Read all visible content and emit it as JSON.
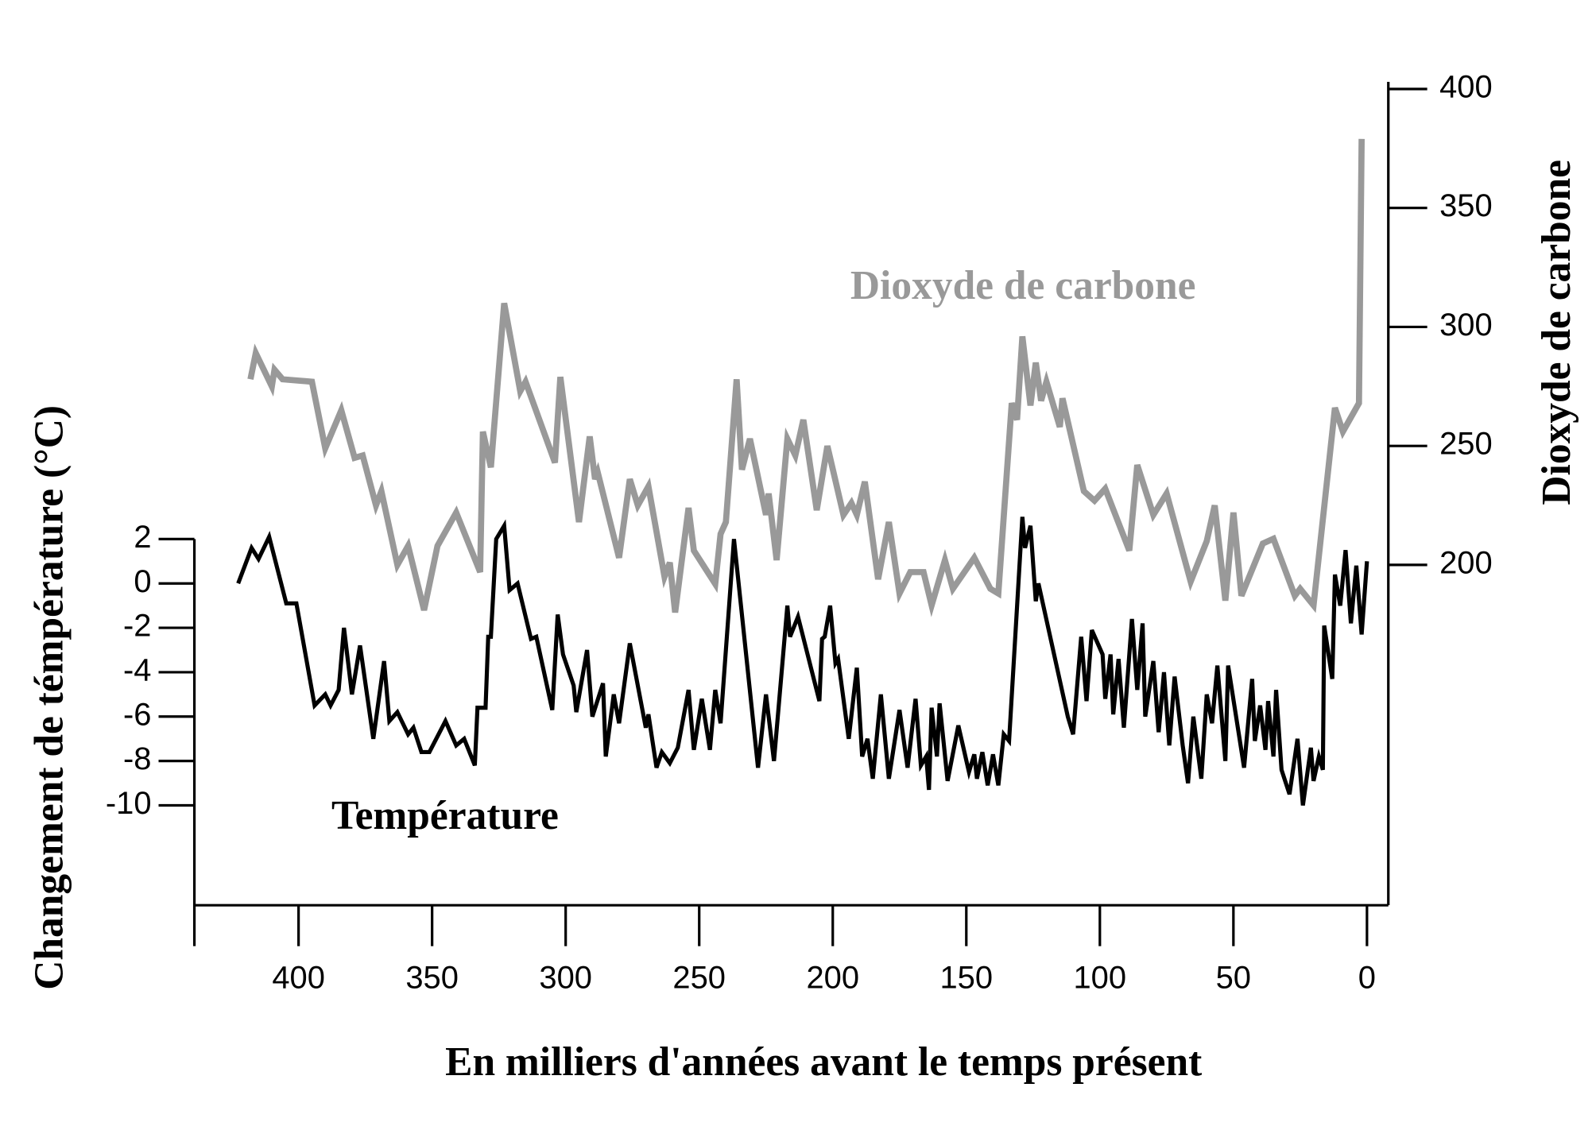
{
  "chart_data": {
    "type": "line",
    "xlabel": "En milliers d'années avant le temps présent",
    "ylabel": "Changement de témpérature (°C)",
    "y2label": "Dioxyde de carbone",
    "xlim": [
      439,
      -8
    ],
    "xticks": [
      400,
      350,
      300,
      250,
      200,
      150,
      100,
      50,
      0
    ],
    "ylim": [
      -14.5,
      2
    ],
    "yticks": [
      2,
      0,
      -2,
      -4,
      -6,
      -8,
      -10
    ],
    "y2lim": [
      57,
      403
    ],
    "y2ticks": [
      400,
      350,
      300,
      250,
      200
    ],
    "series": [
      {
        "name": "Température",
        "color": "#000000",
        "x": [
          422.6,
          417.6,
          415,
          411,
          404.6,
          400.8,
          394,
          390,
          388,
          385,
          383,
          380,
          377,
          372,
          368,
          366,
          363,
          359,
          357,
          354,
          351,
          345,
          341,
          338,
          334,
          333,
          330,
          329,
          328,
          326,
          323,
          321,
          318,
          313,
          311,
          305,
          303,
          301,
          297,
          296,
          292,
          290,
          286,
          285,
          282,
          280,
          276,
          270,
          269,
          266,
          264,
          261,
          258,
          254,
          252,
          249,
          246,
          244,
          242,
          237,
          228,
          225,
          222,
          217,
          216,
          213,
          205,
          204,
          203,
          201,
          199,
          198,
          194,
          191,
          189,
          187,
          185,
          182,
          179,
          175,
          172,
          169,
          167,
          165,
          164,
          163,
          161,
          160,
          157,
          153,
          149,
          147,
          146,
          144,
          142,
          140,
          138,
          136,
          134,
          129,
          128,
          126,
          124,
          123,
          112,
          110,
          107,
          105,
          103,
          99,
          98,
          96,
          95,
          93,
          91,
          88,
          86,
          84,
          83,
          80,
          78,
          76,
          74,
          72,
          69,
          67,
          65,
          62,
          60,
          58,
          56,
          53,
          52,
          46,
          43,
          42,
          40,
          38,
          37,
          35,
          34,
          32,
          29,
          26,
          24,
          21,
          20,
          18,
          16.5,
          16,
          13,
          12,
          10,
          8,
          6,
          4,
          2,
          0
        ],
        "values": [
          0,
          1.6,
          1.1,
          2.1,
          -0.9,
          -0.9,
          -5.5,
          -5,
          -5.5,
          -4.8,
          -2,
          -5,
          -2.8,
          -7,
          -3.5,
          -6.2,
          -5.8,
          -6.8,
          -6.5,
          -7.6,
          -7.6,
          -6.2,
          -7.3,
          -7,
          -8.2,
          -5.6,
          -5.6,
          -2.4,
          -2.4,
          2,
          2.6,
          -0.3,
          0,
          -2.5,
          -2.4,
          -5.7,
          -1.4,
          -3.2,
          -4.6,
          -5.8,
          -3,
          -6,
          -4.5,
          -7.8,
          -5,
          -6.3,
          -2.7,
          -6.5,
          -5.9,
          -8.3,
          -7.6,
          -8.1,
          -7.4,
          -4.8,
          -7.5,
          -5.2,
          -7.5,
          -4.8,
          -6.3,
          2,
          -8.3,
          -5,
          -8,
          -1,
          -2.4,
          -1.5,
          -5.3,
          -2.5,
          -2.4,
          -1,
          -3.6,
          -3.4,
          -7,
          -3.8,
          -7.8,
          -7,
          -8.8,
          -5,
          -8.8,
          -5.7,
          -8.3,
          -5.2,
          -8.2,
          -7.8,
          -9.3,
          -5.6,
          -7.8,
          -5.4,
          -8.9,
          -6.4,
          -8.5,
          -7.7,
          -8.8,
          -7.6,
          -9.1,
          -7.7,
          -9.1,
          -6.8,
          -7.1,
          3,
          1.6,
          2.6,
          -0.8,
          0,
          -6,
          -6.8,
          -2.4,
          -5.3,
          -2.1,
          -3.2,
          -5.2,
          -3.2,
          -5.9,
          -3.4,
          -6.5,
          -1.6,
          -4.8,
          -1.8,
          -6,
          -3.5,
          -6.7,
          -4,
          -7.3,
          -4.2,
          -7.3,
          -9,
          -6,
          -8.8,
          -5,
          -6.3,
          -3.7,
          -8,
          -3.7,
          -8.3,
          -4.3,
          -7.1,
          -5.5,
          -7.5,
          -5.3,
          -7.8,
          -4.8,
          -8.4,
          -9.5,
          -7,
          -10,
          -7.4,
          -8.9,
          -7.8,
          -8.4,
          -1.9,
          -4.3,
          0.4,
          -1,
          1.5,
          -1.8,
          0.8,
          -2.3,
          1
        ]
      },
      {
        "name": "Dioxyde de carbone",
        "color": "#999999",
        "axis": "y2",
        "x": [
          418,
          416,
          410,
          409,
          406,
          395,
          390,
          384,
          379,
          376,
          371,
          369,
          363,
          359,
          353,
          348,
          341,
          332,
          331,
          328,
          323,
          317,
          315,
          304,
          302,
          295,
          291,
          289,
          288,
          280,
          276,
          273,
          269,
          263,
          261,
          259,
          254,
          252,
          244,
          242,
          240,
          236,
          234,
          231,
          225,
          224,
          221,
          217,
          214,
          211,
          206,
          202,
          196,
          193,
          191,
          188,
          183,
          179,
          175,
          171,
          166,
          163,
          158,
          155,
          147,
          141,
          138,
          133,
          131,
          129,
          126,
          124,
          122,
          120,
          115,
          114,
          106,
          102,
          98,
          89,
          86,
          80,
          75,
          66,
          60,
          57,
          53,
          50,
          47,
          39,
          35,
          27,
          25,
          20,
          12,
          9,
          3,
          2
        ],
        "values": [
          278,
          289,
          275,
          282,
          278,
          277,
          249,
          265,
          245,
          246,
          225,
          231,
          200,
          208,
          181,
          208,
          222,
          197,
          256,
          241,
          310,
          273,
          277,
          243,
          279,
          218,
          254,
          236,
          239,
          203,
          236,
          225,
          233,
          195,
          201,
          180,
          224,
          206,
          192,
          213,
          218,
          278,
          240,
          253,
          221,
          230,
          202,
          253,
          246,
          261,
          223,
          250,
          221,
          226,
          221,
          235,
          194,
          218,
          188,
          197,
          197,
          183,
          202,
          190,
          203,
          190,
          188,
          268,
          261,
          296,
          267,
          285,
          269,
          277,
          258,
          270,
          231,
          227,
          232,
          206,
          242,
          221,
          230,
          193,
          210,
          225,
          185,
          222,
          187,
          209,
          211,
          187,
          190,
          183,
          266,
          256,
          268,
          379
        ]
      }
    ]
  }
}
